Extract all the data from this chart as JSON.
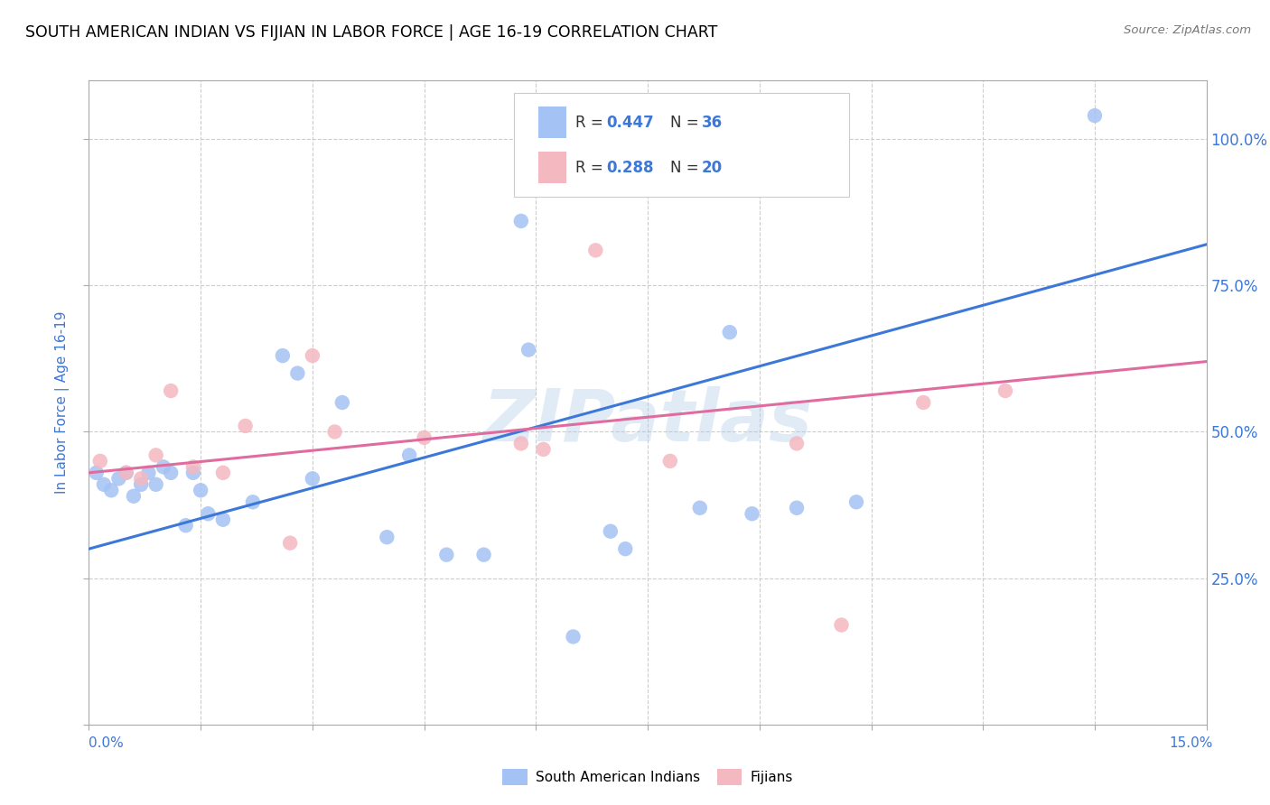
{
  "title": "SOUTH AMERICAN INDIAN VS FIJIAN IN LABOR FORCE | AGE 16-19 CORRELATION CHART",
  "source_text": "Source: ZipAtlas.com",
  "ylabel": "In Labor Force | Age 16-19",
  "xmin": 0.0,
  "xmax": 15.0,
  "ymin": 0.0,
  "ymax": 110.0,
  "yticks": [
    0,
    25,
    50,
    75,
    100
  ],
  "ytick_labels": [
    "",
    "25.0%",
    "50.0%",
    "75.0%",
    "100.0%"
  ],
  "watermark": "ZIPatlas",
  "blue_color": "#a4c2f4",
  "pink_color": "#f4b8c1",
  "blue_line_color": "#3c78d8",
  "pink_line_color": "#e06c9f",
  "label_blue": "South American Indians",
  "label_pink": "Fijians",
  "blue_scatter_x": [
    0.1,
    0.2,
    0.3,
    0.4,
    0.5,
    0.6,
    0.7,
    0.8,
    0.9,
    1.0,
    1.1,
    1.3,
    1.4,
    1.5,
    1.6,
    1.8,
    2.2,
    2.6,
    2.8,
    3.0,
    3.4,
    4.0,
    4.3,
    4.8,
    5.3,
    5.8,
    5.9,
    6.5,
    7.0,
    7.2,
    8.2,
    8.6,
    8.9,
    9.5,
    10.3,
    13.5
  ],
  "blue_scatter_y": [
    43,
    41,
    40,
    42,
    43,
    39,
    41,
    43,
    41,
    44,
    43,
    34,
    43,
    40,
    36,
    35,
    38,
    63,
    60,
    42,
    55,
    32,
    46,
    29,
    29,
    86,
    64,
    15,
    33,
    30,
    37,
    67,
    36,
    37,
    38,
    104
  ],
  "pink_scatter_x": [
    0.15,
    0.5,
    0.7,
    0.9,
    1.1,
    1.4,
    1.8,
    2.1,
    2.7,
    3.0,
    3.3,
    4.5,
    5.8,
    6.1,
    6.8,
    7.8,
    9.5,
    10.1,
    11.2,
    12.3
  ],
  "pink_scatter_y": [
    45,
    43,
    42,
    46,
    57,
    44,
    43,
    51,
    31,
    63,
    50,
    49,
    48,
    47,
    81,
    45,
    48,
    17,
    55,
    57
  ],
  "blue_line_x0": 0.0,
  "blue_line_y0": 30.0,
  "blue_line_x1": 15.0,
  "blue_line_y1": 82.0,
  "pink_line_x0": 0.0,
  "pink_line_y0": 43.0,
  "pink_line_x1": 15.0,
  "pink_line_y1": 62.0,
  "background_color": "#ffffff",
  "grid_color": "#c8c8c8",
  "title_color": "#000000",
  "axis_label_color": "#3c78d8",
  "right_axis_color": "#3c78d8"
}
